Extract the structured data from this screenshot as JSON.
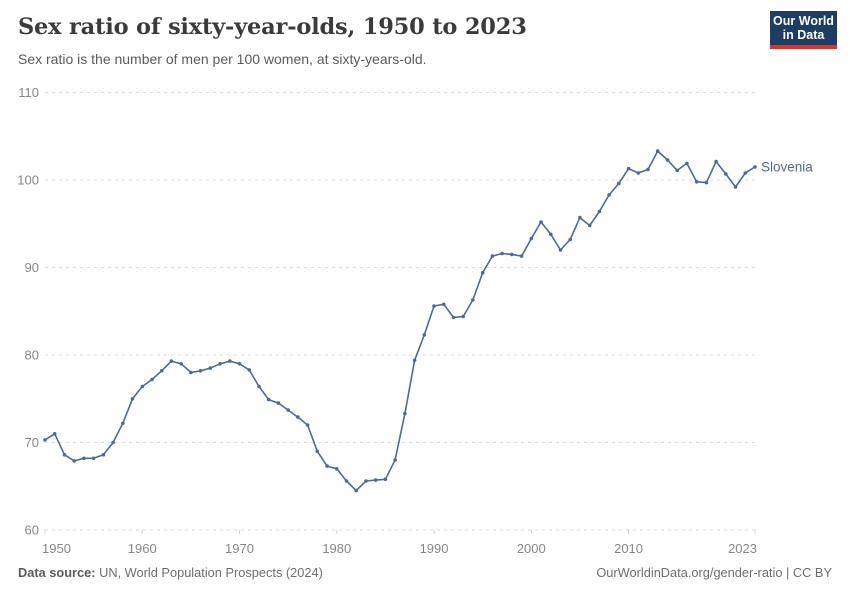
{
  "header": {
    "title": "Sex ratio of sixty-year-olds, 1950 to 2023",
    "subtitle": "Sex ratio is the number of men per 100 women, at sixty-years-old."
  },
  "logo": {
    "line1": "Our World",
    "line2": "in Data",
    "bg_color": "#1d3d63",
    "accent_color": "#d7352c"
  },
  "chart_data": {
    "type": "line",
    "title": "Sex ratio of sixty-year-olds, 1950 to 2023",
    "xlabel": "",
    "ylabel": "",
    "xlim": [
      1950,
      2023
    ],
    "ylim": [
      60,
      110
    ],
    "yticks": [
      60,
      70,
      80,
      90,
      100,
      110
    ],
    "xticks": [
      1950,
      1960,
      1970,
      1980,
      1990,
      2000,
      2010,
      2023
    ],
    "grid": "horizontal-dashed",
    "legend_position": "end-of-line-label",
    "grid_color": "#dcdcdc",
    "tick_label_color": "#878787",
    "series": [
      {
        "name": "Slovenia",
        "color": "#4C6A9C",
        "x": [
          1950,
          1951,
          1952,
          1953,
          1954,
          1955,
          1956,
          1957,
          1958,
          1959,
          1960,
          1961,
          1962,
          1963,
          1964,
          1965,
          1966,
          1967,
          1968,
          1969,
          1970,
          1971,
          1972,
          1973,
          1974,
          1975,
          1976,
          1977,
          1978,
          1979,
          1980,
          1981,
          1982,
          1983,
          1984,
          1985,
          1986,
          1987,
          1988,
          1989,
          1990,
          1991,
          1992,
          1993,
          1994,
          1995,
          1996,
          1997,
          1998,
          1999,
          2000,
          2001,
          2002,
          2003,
          2004,
          2005,
          2006,
          2007,
          2008,
          2009,
          2010,
          2011,
          2012,
          2013,
          2014,
          2015,
          2016,
          2017,
          2018,
          2019,
          2020,
          2021,
          2022,
          2023
        ],
        "values": [
          70.3,
          71.0,
          68.6,
          67.9,
          68.2,
          68.2,
          68.6,
          70.0,
          72.2,
          75.0,
          76.4,
          77.2,
          78.2,
          79.3,
          79.0,
          78.0,
          78.2,
          78.5,
          79.0,
          79.3,
          79.0,
          78.3,
          76.4,
          74.9,
          74.5,
          73.7,
          72.9,
          72.0,
          69.0,
          67.3,
          67.0,
          65.6,
          64.5,
          65.6,
          65.7,
          65.8,
          68.0,
          73.3,
          79.4,
          82.3,
          85.6,
          85.8,
          84.3,
          84.4,
          86.3,
          89.4,
          91.3,
          91.6,
          91.5,
          91.3,
          93.3,
          95.2,
          93.8,
          92.0,
          93.2,
          95.7,
          94.8,
          96.4,
          98.3,
          99.6,
          101.3,
          100.8,
          101.2,
          103.3,
          102.3,
          101.1,
          101.9,
          99.8,
          99.7,
          102.1,
          100.7,
          99.2,
          100.8,
          101.5
        ]
      }
    ]
  },
  "footer": {
    "source_label": "Data source:",
    "source_text": " UN, World Population Prospects (2024)",
    "link_text": "OurWorldinData.org/gender-ratio",
    "separator": " | ",
    "license_text": "CC BY"
  }
}
